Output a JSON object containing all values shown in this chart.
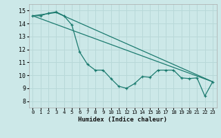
{
  "title": "",
  "xlabel": "Humidex (Indice chaleur)",
  "bg_color": "#cce8e8",
  "grid_color": "#b8d8d8",
  "line_color": "#1a7a6e",
  "xlim": [
    -0.5,
    23.5
  ],
  "ylim": [
    7.5,
    15.5
  ],
  "xticks": [
    0,
    1,
    2,
    3,
    4,
    5,
    6,
    7,
    8,
    9,
    10,
    11,
    12,
    13,
    14,
    15,
    16,
    17,
    18,
    19,
    20,
    21,
    22,
    23
  ],
  "yticks": [
    8,
    9,
    10,
    11,
    12,
    13,
    14,
    15
  ],
  "line1_x": [
    0,
    1,
    2,
    3,
    4,
    5,
    6,
    7,
    8,
    9,
    10,
    11,
    12,
    13,
    14,
    15,
    16,
    17,
    18,
    19,
    20,
    21,
    22,
    23
  ],
  "line1_y": [
    14.6,
    14.6,
    14.8,
    14.9,
    14.6,
    13.9,
    11.8,
    10.85,
    10.4,
    10.4,
    9.75,
    9.15,
    9.0,
    9.35,
    9.9,
    9.85,
    10.4,
    10.4,
    10.4,
    9.8,
    9.75,
    9.8,
    8.4,
    9.5
  ],
  "line2_x": [
    0,
    23
  ],
  "line2_y": [
    14.6,
    9.5
  ],
  "line3_x": [
    0,
    3,
    23
  ],
  "line3_y": [
    14.6,
    14.85,
    9.5
  ]
}
